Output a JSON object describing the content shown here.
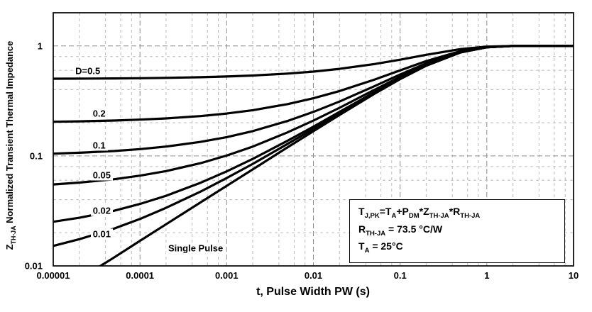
{
  "chart": {
    "y_axis_title": "Z~TH-JA~ Normalized Transient Thermal Impedance",
    "x_axis_title": "t, Pulse Width PW (s)"
  },
  "annotation": {
    "line1": "T~J,PK~=T~A~+P~DM~*Z~TH-JA~*R~TH-JA~",
    "line2": "R~TH-JA~ = 73.5 °C/W",
    "line3": "T~A~ = 25°C"
  },
  "colors": {
    "curve": "#000000",
    "grid_major": "#8c8c8c",
    "grid_minor": "#bcbcbc"
  },
  "chart_data": {
    "type": "line",
    "title": "",
    "xlabel": "t, Pulse Width PW (s)",
    "ylabel": "ZTH-JA Normalized Transient Thermal Impedance",
    "x_scale": "log",
    "y_scale": "log",
    "xlim": [
      1e-05,
      10
    ],
    "ylim": [
      0.01,
      2
    ],
    "grid": "dashed log major and minor gridlines, both axes",
    "x_ticks": [
      {
        "value": 1e-05,
        "label": "0.00001"
      },
      {
        "value": 0.0001,
        "label": "0.0001"
      },
      {
        "value": 0.001,
        "label": "0.001"
      },
      {
        "value": 0.01,
        "label": "0.01"
      },
      {
        "value": 0.1,
        "label": "0.1"
      },
      {
        "value": 1,
        "label": "1"
      },
      {
        "value": 10,
        "label": "10"
      }
    ],
    "y_ticks": [
      {
        "value": 1,
        "label": "1"
      },
      {
        "value": 0.1,
        "label": "0.1"
      },
      {
        "value": 0.01,
        "label": "0.01"
      }
    ],
    "x": [
      1e-05,
      2e-05,
      5e-05,
      0.0001,
      0.0002,
      0.0005,
      0.001,
      0.002,
      0.005,
      0.01,
      0.02,
      0.05,
      0.1,
      0.2,
      0.5,
      1,
      2,
      5,
      10
    ],
    "series": [
      {
        "name": "D=0.5",
        "duty_cycle": 0.5,
        "label": {
          "text": "D=0.5",
          "x": 1.7e-05,
          "y": 0.59
        },
        "values": [
          0.5027,
          0.5038,
          0.506,
          0.5085,
          0.512,
          0.5189,
          0.5267,
          0.5377,
          0.5596,
          0.5839,
          0.6179,
          0.6825,
          0.7493,
          0.8299,
          0.936,
          0.9855,
          0.9992,
          1,
          1
        ]
      },
      {
        "name": "0.2",
        "duty_cycle": 0.2,
        "label": {
          "text": "0.2",
          "x": 2.7e-05,
          "y": 0.243
        },
        "values": [
          0.2042,
          0.2061,
          0.2095,
          0.2135,
          0.2191,
          0.2302,
          0.2427,
          0.2603,
          0.2954,
          0.3342,
          0.3886,
          0.4919,
          0.5988,
          0.7278,
          0.8976,
          0.9767,
          0.9987,
          1,
          1
        ]
      },
      {
        "name": "0.1",
        "duty_cycle": 0.1,
        "label": {
          "text": "0.1",
          "x": 2.7e-05,
          "y": 0.125
        },
        "values": [
          0.1048,
          0.1068,
          0.1107,
          0.1152,
          0.1215,
          0.134,
          0.1481,
          0.1679,
          0.2073,
          0.251,
          0.3121,
          0.4284,
          0.5487,
          0.6938,
          0.8848,
          0.9738,
          0.9986,
          1,
          1
        ]
      },
      {
        "name": "0.05",
        "duty_cycle": 0.05,
        "label": {
          "text": "0.05",
          "x": 2.7e-05,
          "y": 0.067
        },
        "values": [
          0.055,
          0.0572,
          0.0613,
          0.0661,
          0.0727,
          0.0859,
          0.1007,
          0.1216,
          0.1632,
          0.2094,
          0.2739,
          0.3967,
          0.5236,
          0.6768,
          0.8784,
          0.9724,
          0.9985,
          1,
          1
        ]
      },
      {
        "name": "0.02",
        "duty_cycle": 0.02,
        "label": {
          "text": "0.02",
          "x": 2.7e-05,
          "y": 0.032
        },
        "values": [
          0.0252,
          0.0274,
          0.0317,
          0.0366,
          0.0434,
          0.057,
          0.0723,
          0.0939,
          0.1368,
          0.1844,
          0.251,
          0.3776,
          0.5085,
          0.6666,
          0.8746,
          0.9715,
          0.9984,
          1,
          1
        ]
      },
      {
        "name": "0.01",
        "duty_cycle": 0.01,
        "label": {
          "text": "0.01",
          "x": 2.7e-05,
          "y": 0.0195
        },
        "values": [
          0.0152,
          0.0175,
          0.0218,
          0.0267,
          0.0337,
          0.0474,
          0.0629,
          0.0846,
          0.128,
          0.1761,
          0.2433,
          0.3712,
          0.5035,
          0.6632,
          0.8733,
          0.9712,
          0.9984,
          1,
          1
        ]
      },
      {
        "name": "Single Pulse",
        "duty_cycle": null,
        "label": {
          "text": "Single Pulse",
          "x": 0.0002,
          "y": 0.0145
        },
        "values": [
          0.0053,
          0.0076,
          0.0119,
          0.0169,
          0.0239,
          0.0378,
          0.0534,
          0.0754,
          0.1192,
          0.1678,
          0.2357,
          0.3649,
          0.4985,
          0.6598,
          0.872,
          0.9709,
          0.9984,
          1,
          1
        ]
      }
    ]
  }
}
